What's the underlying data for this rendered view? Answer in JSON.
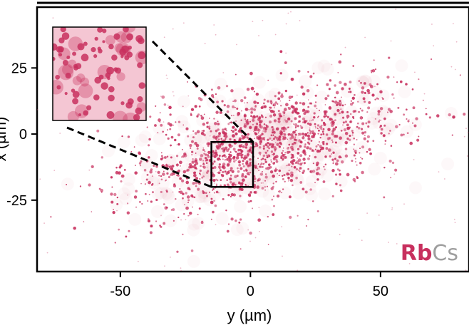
{
  "chart_data": {
    "type": "scatter",
    "title": "",
    "xlabel": "y (µm)",
    "ylabel": "x (µm)",
    "xlim": [
      -82,
      84
    ],
    "ylim": [
      -52,
      48
    ],
    "xticks": [
      -50,
      0,
      50
    ],
    "yticks": [
      25,
      0,
      -25
    ],
    "xtick_labels": [
      "-50",
      "0",
      "50"
    ],
    "ytick_labels": [
      "25",
      "0",
      "-25"
    ],
    "grid": false,
    "series": [
      {
        "color": "#c8305e",
        "description_free": true,
        "cluster": {
          "center": [
            5,
            -5
          ],
          "spread_x": 26,
          "spread_y": 11,
          "tilt_slope": 0.22,
          "count": 1500
        }
      }
    ],
    "zoom_box": {
      "x": [
        -15,
        1
      ],
      "y": [
        -20,
        -3
      ]
    },
    "inset": {
      "label_colors": {
        "bg": "#f4c6d3",
        "dot": "#c8305e"
      }
    }
  },
  "legend": {
    "species_a": "Rb",
    "species_b": "Cs",
    "species_a_color": "#c8305e",
    "species_b_color": "#9e9e9e"
  },
  "colors": {
    "accent": "#c8305e"
  }
}
